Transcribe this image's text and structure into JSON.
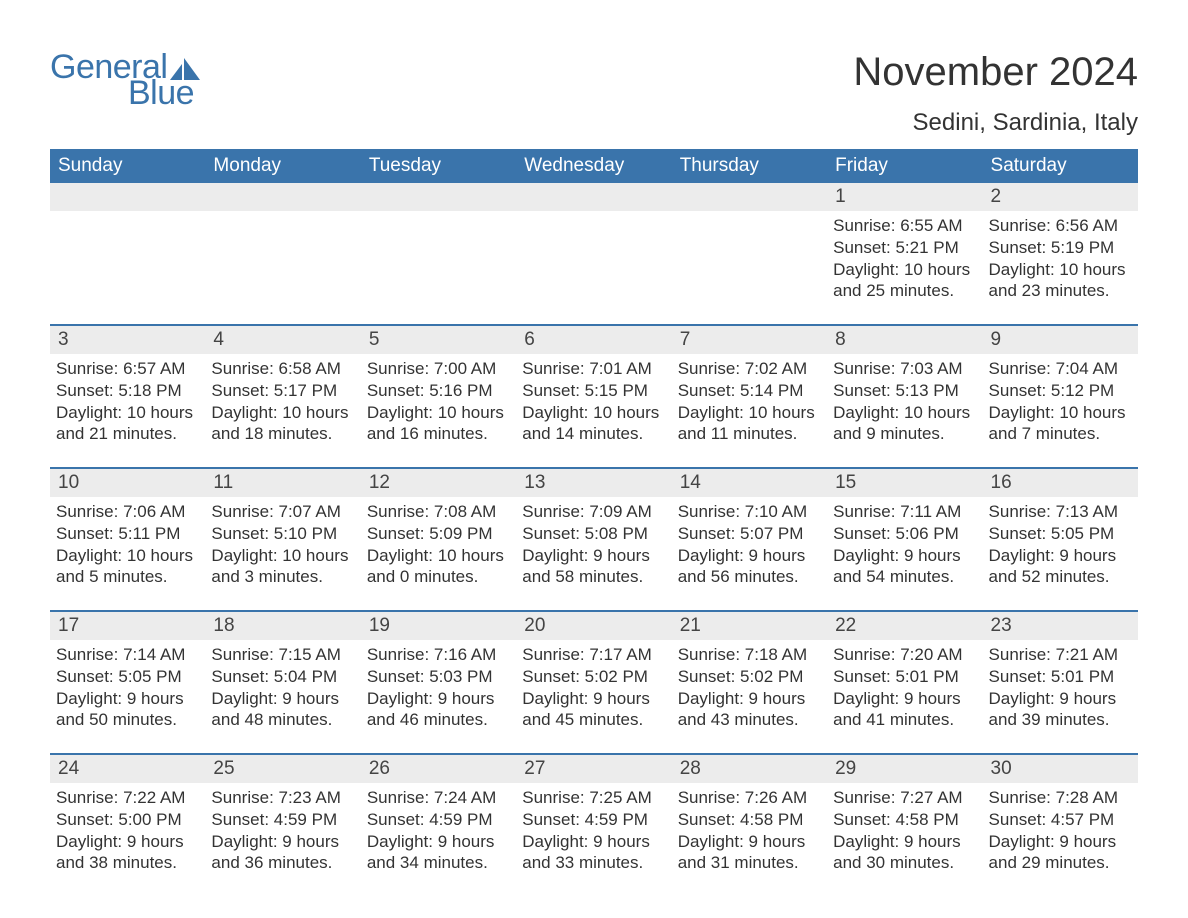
{
  "brand": {
    "general": "General",
    "blue": "Blue",
    "accent_color": "#3a74ab"
  },
  "header": {
    "month_title": "November 2024",
    "location": "Sedini, Sardinia, Italy"
  },
  "calendar": {
    "day_names": [
      "Sunday",
      "Monday",
      "Tuesday",
      "Wednesday",
      "Thursday",
      "Friday",
      "Saturday"
    ],
    "header_bg": "#3a74ab",
    "header_fg": "#ffffff",
    "row_separator_color": "#3a74ab",
    "daynum_bg": "#ececec",
    "text_color": "#333333",
    "weeks": [
      [
        {
          "day": "",
          "sunrise": "",
          "sunset": "",
          "daylight1": "",
          "daylight2": ""
        },
        {
          "day": "",
          "sunrise": "",
          "sunset": "",
          "daylight1": "",
          "daylight2": ""
        },
        {
          "day": "",
          "sunrise": "",
          "sunset": "",
          "daylight1": "",
          "daylight2": ""
        },
        {
          "day": "",
          "sunrise": "",
          "sunset": "",
          "daylight1": "",
          "daylight2": ""
        },
        {
          "day": "",
          "sunrise": "",
          "sunset": "",
          "daylight1": "",
          "daylight2": ""
        },
        {
          "day": "1",
          "sunrise": "Sunrise: 6:55 AM",
          "sunset": "Sunset: 5:21 PM",
          "daylight1": "Daylight: 10 hours",
          "daylight2": "and 25 minutes."
        },
        {
          "day": "2",
          "sunrise": "Sunrise: 6:56 AM",
          "sunset": "Sunset: 5:19 PM",
          "daylight1": "Daylight: 10 hours",
          "daylight2": "and 23 minutes."
        }
      ],
      [
        {
          "day": "3",
          "sunrise": "Sunrise: 6:57 AM",
          "sunset": "Sunset: 5:18 PM",
          "daylight1": "Daylight: 10 hours",
          "daylight2": "and 21 minutes."
        },
        {
          "day": "4",
          "sunrise": "Sunrise: 6:58 AM",
          "sunset": "Sunset: 5:17 PM",
          "daylight1": "Daylight: 10 hours",
          "daylight2": "and 18 minutes."
        },
        {
          "day": "5",
          "sunrise": "Sunrise: 7:00 AM",
          "sunset": "Sunset: 5:16 PM",
          "daylight1": "Daylight: 10 hours",
          "daylight2": "and 16 minutes."
        },
        {
          "day": "6",
          "sunrise": "Sunrise: 7:01 AM",
          "sunset": "Sunset: 5:15 PM",
          "daylight1": "Daylight: 10 hours",
          "daylight2": "and 14 minutes."
        },
        {
          "day": "7",
          "sunrise": "Sunrise: 7:02 AM",
          "sunset": "Sunset: 5:14 PM",
          "daylight1": "Daylight: 10 hours",
          "daylight2": "and 11 minutes."
        },
        {
          "day": "8",
          "sunrise": "Sunrise: 7:03 AM",
          "sunset": "Sunset: 5:13 PM",
          "daylight1": "Daylight: 10 hours",
          "daylight2": "and 9 minutes."
        },
        {
          "day": "9",
          "sunrise": "Sunrise: 7:04 AM",
          "sunset": "Sunset: 5:12 PM",
          "daylight1": "Daylight: 10 hours",
          "daylight2": "and 7 minutes."
        }
      ],
      [
        {
          "day": "10",
          "sunrise": "Sunrise: 7:06 AM",
          "sunset": "Sunset: 5:11 PM",
          "daylight1": "Daylight: 10 hours",
          "daylight2": "and 5 minutes."
        },
        {
          "day": "11",
          "sunrise": "Sunrise: 7:07 AM",
          "sunset": "Sunset: 5:10 PM",
          "daylight1": "Daylight: 10 hours",
          "daylight2": "and 3 minutes."
        },
        {
          "day": "12",
          "sunrise": "Sunrise: 7:08 AM",
          "sunset": "Sunset: 5:09 PM",
          "daylight1": "Daylight: 10 hours",
          "daylight2": "and 0 minutes."
        },
        {
          "day": "13",
          "sunrise": "Sunrise: 7:09 AM",
          "sunset": "Sunset: 5:08 PM",
          "daylight1": "Daylight: 9 hours",
          "daylight2": "and 58 minutes."
        },
        {
          "day": "14",
          "sunrise": "Sunrise: 7:10 AM",
          "sunset": "Sunset: 5:07 PM",
          "daylight1": "Daylight: 9 hours",
          "daylight2": "and 56 minutes."
        },
        {
          "day": "15",
          "sunrise": "Sunrise: 7:11 AM",
          "sunset": "Sunset: 5:06 PM",
          "daylight1": "Daylight: 9 hours",
          "daylight2": "and 54 minutes."
        },
        {
          "day": "16",
          "sunrise": "Sunrise: 7:13 AM",
          "sunset": "Sunset: 5:05 PM",
          "daylight1": "Daylight: 9 hours",
          "daylight2": "and 52 minutes."
        }
      ],
      [
        {
          "day": "17",
          "sunrise": "Sunrise: 7:14 AM",
          "sunset": "Sunset: 5:05 PM",
          "daylight1": "Daylight: 9 hours",
          "daylight2": "and 50 minutes."
        },
        {
          "day": "18",
          "sunrise": "Sunrise: 7:15 AM",
          "sunset": "Sunset: 5:04 PM",
          "daylight1": "Daylight: 9 hours",
          "daylight2": "and 48 minutes."
        },
        {
          "day": "19",
          "sunrise": "Sunrise: 7:16 AM",
          "sunset": "Sunset: 5:03 PM",
          "daylight1": "Daylight: 9 hours",
          "daylight2": "and 46 minutes."
        },
        {
          "day": "20",
          "sunrise": "Sunrise: 7:17 AM",
          "sunset": "Sunset: 5:02 PM",
          "daylight1": "Daylight: 9 hours",
          "daylight2": "and 45 minutes."
        },
        {
          "day": "21",
          "sunrise": "Sunrise: 7:18 AM",
          "sunset": "Sunset: 5:02 PM",
          "daylight1": "Daylight: 9 hours",
          "daylight2": "and 43 minutes."
        },
        {
          "day": "22",
          "sunrise": "Sunrise: 7:20 AM",
          "sunset": "Sunset: 5:01 PM",
          "daylight1": "Daylight: 9 hours",
          "daylight2": "and 41 minutes."
        },
        {
          "day": "23",
          "sunrise": "Sunrise: 7:21 AM",
          "sunset": "Sunset: 5:01 PM",
          "daylight1": "Daylight: 9 hours",
          "daylight2": "and 39 minutes."
        }
      ],
      [
        {
          "day": "24",
          "sunrise": "Sunrise: 7:22 AM",
          "sunset": "Sunset: 5:00 PM",
          "daylight1": "Daylight: 9 hours",
          "daylight2": "and 38 minutes."
        },
        {
          "day": "25",
          "sunrise": "Sunrise: 7:23 AM",
          "sunset": "Sunset: 4:59 PM",
          "daylight1": "Daylight: 9 hours",
          "daylight2": "and 36 minutes."
        },
        {
          "day": "26",
          "sunrise": "Sunrise: 7:24 AM",
          "sunset": "Sunset: 4:59 PM",
          "daylight1": "Daylight: 9 hours",
          "daylight2": "and 34 minutes."
        },
        {
          "day": "27",
          "sunrise": "Sunrise: 7:25 AM",
          "sunset": "Sunset: 4:59 PM",
          "daylight1": "Daylight: 9 hours",
          "daylight2": "and 33 minutes."
        },
        {
          "day": "28",
          "sunrise": "Sunrise: 7:26 AM",
          "sunset": "Sunset: 4:58 PM",
          "daylight1": "Daylight: 9 hours",
          "daylight2": "and 31 minutes."
        },
        {
          "day": "29",
          "sunrise": "Sunrise: 7:27 AM",
          "sunset": "Sunset: 4:58 PM",
          "daylight1": "Daylight: 9 hours",
          "daylight2": "and 30 minutes."
        },
        {
          "day": "30",
          "sunrise": "Sunrise: 7:28 AM",
          "sunset": "Sunset: 4:57 PM",
          "daylight1": "Daylight: 9 hours",
          "daylight2": "and 29 minutes."
        }
      ]
    ]
  }
}
